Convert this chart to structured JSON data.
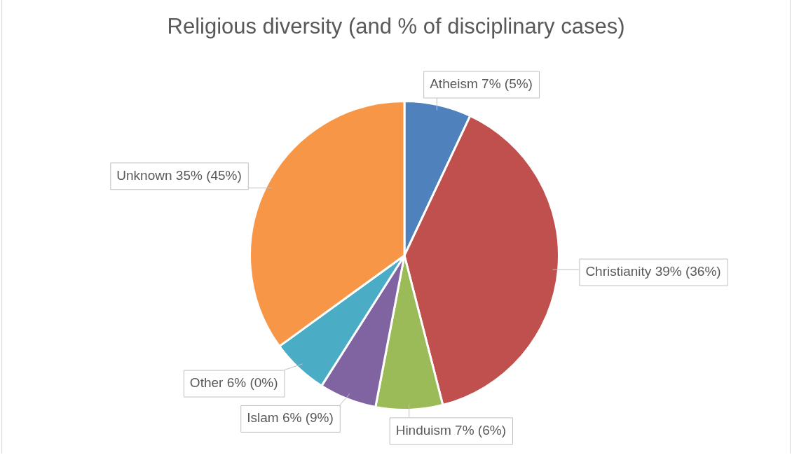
{
  "chart_data": {
    "type": "pie",
    "title": "Religious diversity (and % of disciplinary cases)",
    "categories": [
      "Atheism",
      "Christianity",
      "Hinduism",
      "Islam",
      "Other",
      "Unknown"
    ],
    "values": [
      7,
      39,
      7,
      6,
      6,
      35
    ],
    "colors": [
      "#4f81bd",
      "#c0504d",
      "#9bbb59",
      "#8064a2",
      "#4bacc6",
      "#f79646"
    ],
    "value_labels": [
      "7% (5%)",
      "39% (36%)",
      "7% (6%)",
      "6% (9%)",
      "6% (0%)",
      "35% (45%)"
    ],
    "legend": false
  }
}
